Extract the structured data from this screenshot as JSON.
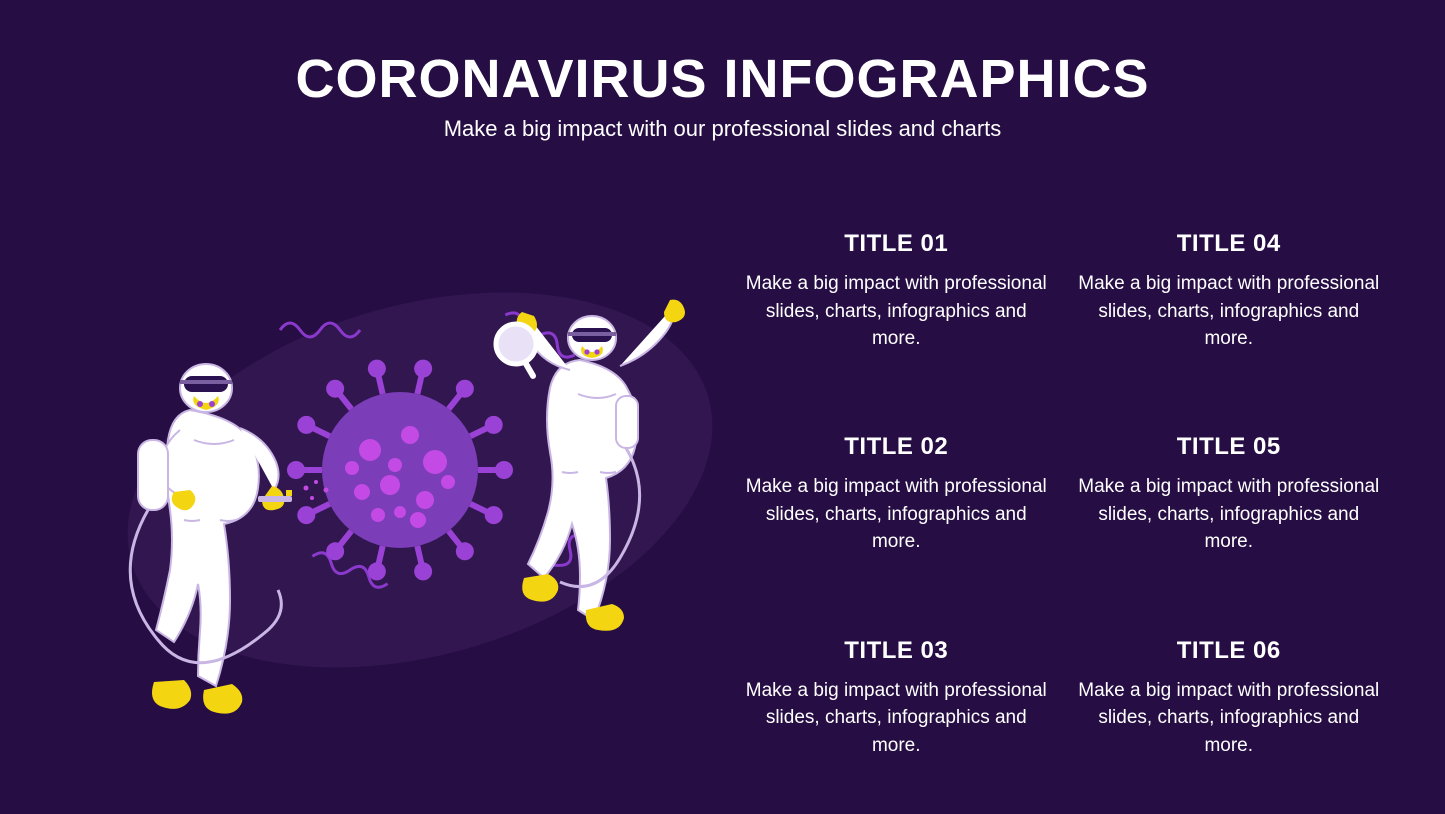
{
  "type": "infographic",
  "background_color": "#260e44",
  "text_color": "#ffffff",
  "header": {
    "title": "CORONAVIRUS INFOGRAPHICS",
    "title_fontsize": 54,
    "title_weight": 900,
    "subtitle": "Make a big impact with our professional slides and charts",
    "subtitle_fontsize": 22
  },
  "illustration": {
    "blob_fill": "#321650",
    "virus_body_fill": "#7b3db8",
    "virus_dot_fill": "#c44ae6",
    "virus_spike_fill": "#9a42d6",
    "squiggle_stroke": "#8a39cc",
    "suit_fill": "#ffffff",
    "suit_stroke": "#c9b6e4",
    "suit_seam": "#c9b6e4",
    "glove_boot_fill": "#f4d511",
    "tube_stroke": "#c9b6e4",
    "goggle_fill": "#2a1250",
    "goggle_strap": "#7a5fa0",
    "mask_fill": "#f4d511",
    "mask_valve": "#9a42d6",
    "magnifier_rim": "#ffffff",
    "magnifier_lens": "#e9e1f5",
    "spray_nozzle": "#f4d511",
    "spray_particle": "#c44ae6"
  },
  "grid": {
    "title_fontsize": 24,
    "title_weight": 800,
    "body_fontsize": 19,
    "items": [
      {
        "title": "TITLE 01",
        "body": "Make a big impact with professional slides, charts, infographics and more."
      },
      {
        "title": "TITLE 02",
        "body": "Make a big impact with professional slides, charts, infographics and more."
      },
      {
        "title": "TITLE 03",
        "body": "Make a big impact with professional slides, charts, infographics and more."
      },
      {
        "title": "TITLE 04",
        "body": "Make a big impact with professional slides, charts, infographics and more."
      },
      {
        "title": "TITLE 05",
        "body": "Make a big impact with professional slides, charts, infographics and more."
      },
      {
        "title": "TITLE 06",
        "body": "Make a big impact with professional slides, charts, infographics and more."
      }
    ]
  }
}
